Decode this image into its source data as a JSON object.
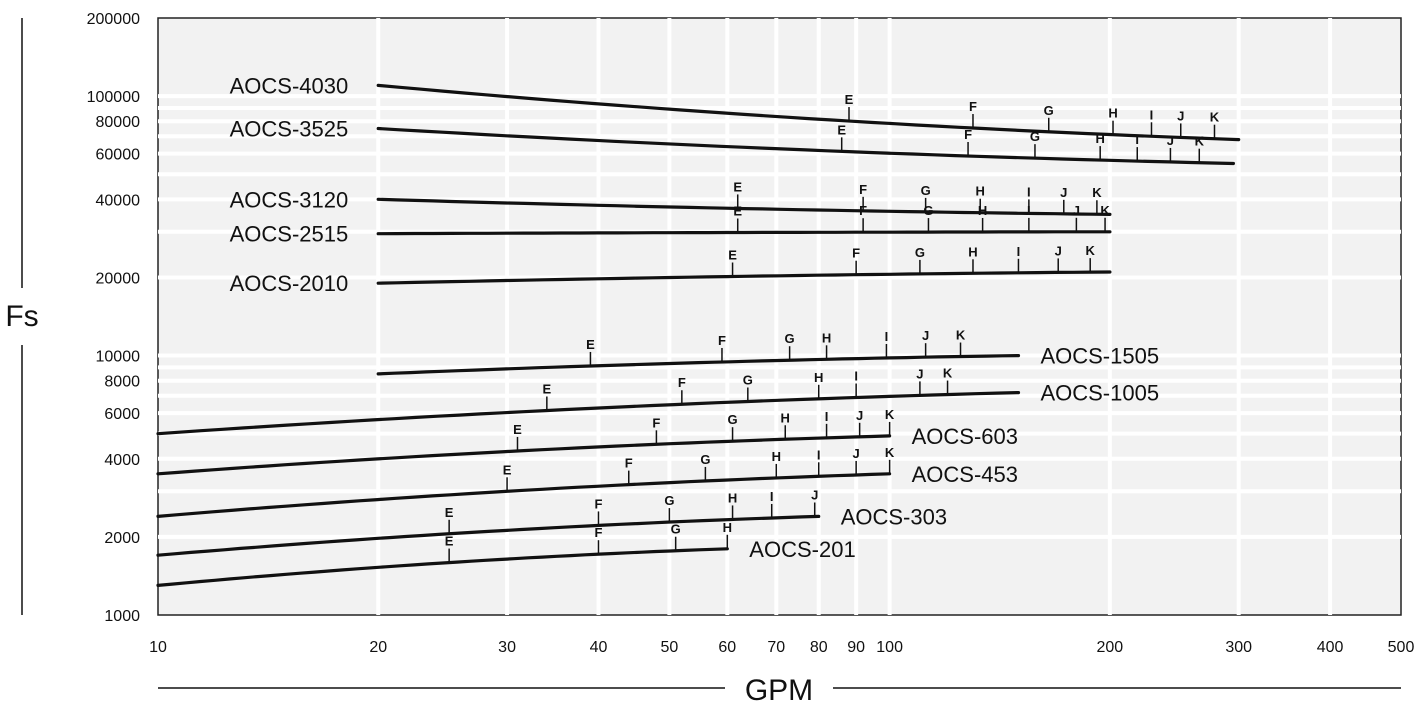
{
  "chart_data": {
    "type": "line",
    "title": "",
    "xlabel": "GPM",
    "ylabel": "Fs",
    "xscale": "log",
    "yscale": "log",
    "xlim": [
      10,
      500
    ],
    "ylim": [
      1000,
      200000
    ],
    "grid": true,
    "x_ticks": [
      {
        "value": 10,
        "label": "10"
      },
      {
        "value": 20,
        "label": "20"
      },
      {
        "value": 30,
        "label": "30"
      },
      {
        "value": 40,
        "label": "40"
      },
      {
        "value": 50,
        "label": "50"
      },
      {
        "value": 60,
        "label": "60"
      },
      {
        "value": 70,
        "label": "70"
      },
      {
        "value": 80,
        "label": "80"
      },
      {
        "value": 90,
        "label": "90"
      },
      {
        "value": 100,
        "label": "100"
      },
      {
        "value": 200,
        "label": "200"
      },
      {
        "value": 300,
        "label": "300"
      },
      {
        "value": 400,
        "label": "400"
      },
      {
        "value": 500,
        "label": "500"
      }
    ],
    "y_ticks": [
      {
        "value": 1000,
        "label": "1000"
      },
      {
        "value": 2000,
        "label": "2000"
      },
      {
        "value": 4000,
        "label": "4000"
      },
      {
        "value": 6000,
        "label": "6000"
      },
      {
        "value": 8000,
        "label": "8000"
      },
      {
        "value": 10000,
        "label": "10000"
      },
      {
        "value": 20000,
        "label": "20000"
      },
      {
        "value": 40000,
        "label": "40000"
      },
      {
        "value": 60000,
        "label": "60000"
      },
      {
        "value": 80000,
        "label": "80000"
      },
      {
        "value": 100000,
        "label": "100000"
      },
      {
        "value": 200000,
        "label": "200000"
      }
    ],
    "series": [
      {
        "name": "AOCS-4030",
        "label_side": "left",
        "x": [
          20,
          300
        ],
        "y": [
          110000,
          68000
        ],
        "markers": [
          {
            "label": "E",
            "x": 88
          },
          {
            "label": "F",
            "x": 130
          },
          {
            "label": "G",
            "x": 165
          },
          {
            "label": "H",
            "x": 202
          },
          {
            "label": "I",
            "x": 228
          },
          {
            "label": "J",
            "x": 250
          },
          {
            "label": "K",
            "x": 278
          }
        ]
      },
      {
        "name": "AOCS-3525",
        "label_side": "left",
        "x": [
          20,
          295
        ],
        "y": [
          75000,
          55000
        ],
        "markers": [
          {
            "label": "E",
            "x": 86
          },
          {
            "label": "F",
            "x": 128
          },
          {
            "label": "G",
            "x": 158
          },
          {
            "label": "H",
            "x": 194
          },
          {
            "label": "I",
            "x": 218
          },
          {
            "label": "J",
            "x": 242
          },
          {
            "label": "K",
            "x": 265
          }
        ]
      },
      {
        "name": "AOCS-3120",
        "label_side": "left",
        "x": [
          20,
          200
        ],
        "y": [
          40000,
          35000
        ],
        "markers": [
          {
            "label": "E",
            "x": 62
          },
          {
            "label": "F",
            "x": 92
          },
          {
            "label": "G",
            "x": 112
          },
          {
            "label": "H",
            "x": 133
          },
          {
            "label": "I",
            "x": 155
          },
          {
            "label": "J",
            "x": 173
          },
          {
            "label": "K",
            "x": 192
          }
        ]
      },
      {
        "name": "AOCS-2515",
        "label_side": "left",
        "x": [
          20,
          200
        ],
        "y": [
          29500,
          30000
        ],
        "markers": [
          {
            "label": "E",
            "x": 62
          },
          {
            "label": "F",
            "x": 92
          },
          {
            "label": "G",
            "x": 113
          },
          {
            "label": "H",
            "x": 134
          },
          {
            "label": "I",
            "x": 155
          },
          {
            "label": "J",
            "x": 180
          },
          {
            "label": "K",
            "x": 197
          }
        ]
      },
      {
        "name": "AOCS-2010",
        "label_side": "left",
        "x": [
          20,
          200
        ],
        "y": [
          19000,
          21000
        ],
        "markers": [
          {
            "label": "E",
            "x": 61
          },
          {
            "label": "F",
            "x": 90
          },
          {
            "label": "G",
            "x": 110
          },
          {
            "label": "H",
            "x": 130
          },
          {
            "label": "I",
            "x": 150
          },
          {
            "label": "J",
            "x": 170
          },
          {
            "label": "K",
            "x": 188
          }
        ]
      },
      {
        "name": "AOCS-1505",
        "label_side": "right",
        "x": [
          20,
          150
        ],
        "y": [
          8500,
          10000
        ],
        "markers": [
          {
            "label": "E",
            "x": 39
          },
          {
            "label": "F",
            "x": 59
          },
          {
            "label": "G",
            "x": 73
          },
          {
            "label": "H",
            "x": 82
          },
          {
            "label": "I",
            "x": 99
          },
          {
            "label": "J",
            "x": 112
          },
          {
            "label": "K",
            "x": 125
          }
        ]
      },
      {
        "name": "AOCS-1005",
        "label_side": "right",
        "x": [
          10,
          150
        ],
        "y": [
          5000,
          7200
        ],
        "markers": [
          {
            "label": "E",
            "x": 34
          },
          {
            "label": "F",
            "x": 52
          },
          {
            "label": "G",
            "x": 64
          },
          {
            "label": "H",
            "x": 80
          },
          {
            "label": "I",
            "x": 90
          },
          {
            "label": "J",
            "x": 110
          },
          {
            "label": "K",
            "x": 120
          }
        ]
      },
      {
        "name": "AOCS-603",
        "label_side": "right",
        "x": [
          10,
          100
        ],
        "y": [
          3500,
          4900
        ],
        "markers": [
          {
            "label": "E",
            "x": 31
          },
          {
            "label": "F",
            "x": 48
          },
          {
            "label": "G",
            "x": 61
          },
          {
            "label": "H",
            "x": 72
          },
          {
            "label": "I",
            "x": 82
          },
          {
            "label": "J",
            "x": 91
          },
          {
            "label": "K",
            "x": 100
          }
        ]
      },
      {
        "name": "AOCS-453",
        "label_side": "right",
        "x": [
          10,
          100
        ],
        "y": [
          2400,
          3500
        ],
        "markers": [
          {
            "label": "E",
            "x": 30
          },
          {
            "label": "F",
            "x": 44
          },
          {
            "label": "G",
            "x": 56
          },
          {
            "label": "H",
            "x": 70
          },
          {
            "label": "I",
            "x": 80
          },
          {
            "label": "J",
            "x": 90
          },
          {
            "label": "K",
            "x": 100
          }
        ]
      },
      {
        "name": "AOCS-303",
        "label_side": "right",
        "x": [
          10,
          80
        ],
        "y": [
          1700,
          2400
        ],
        "markers": [
          {
            "label": "E",
            "x": 25
          },
          {
            "label": "F",
            "x": 40
          },
          {
            "label": "G",
            "x": 50
          },
          {
            "label": "H",
            "x": 61
          },
          {
            "label": "I",
            "x": 69
          },
          {
            "label": "J",
            "x": 79
          }
        ]
      },
      {
        "name": "AOCS-201",
        "label_side": "right",
        "x": [
          10,
          60
        ],
        "y": [
          1300,
          1800
        ],
        "markers": [
          {
            "label": "E",
            "x": 25
          },
          {
            "label": "F",
            "x": 40
          },
          {
            "label": "G",
            "x": 51
          },
          {
            "label": "H",
            "x": 60
          }
        ]
      }
    ]
  }
}
